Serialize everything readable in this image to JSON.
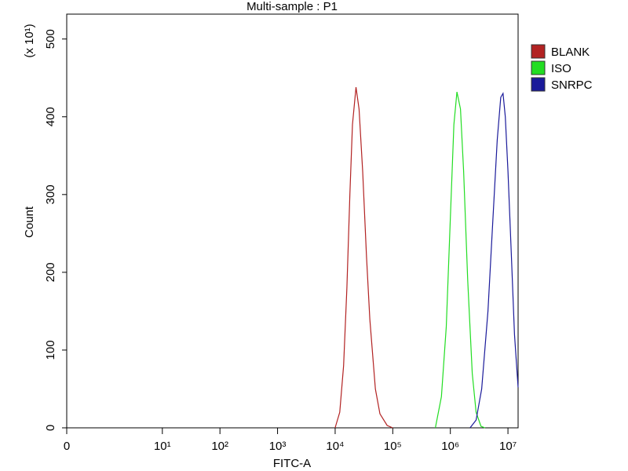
{
  "chart_data": {
    "type": "line",
    "title": "Multi-sample : P1",
    "x_label": "FITC-A",
    "y_label": "Count",
    "y_multiplier": "(x 10¹)",
    "xscale": "biexponential",
    "xlim": [
      0,
      15000000
    ],
    "xticks": [
      0,
      {
        "value": 10,
        "label": "10¹"
      },
      {
        "value": 100,
        "label": "10²"
      },
      {
        "value": 1000,
        "label": "10³"
      },
      {
        "value": 10000,
        "label": "10⁴"
      },
      {
        "value": 100000,
        "label": "10⁵"
      },
      {
        "value": 1000000,
        "label": "10⁶"
      },
      {
        "value": 10000000,
        "label": "10⁷"
      }
    ],
    "ylim": [
      0,
      532
    ],
    "yticks": [
      0,
      100,
      200,
      300,
      400,
      500
    ],
    "legend": "right",
    "series": [
      {
        "name": "BLANK",
        "color": "#b22222",
        "x": [
          10000,
          12000,
          14000,
          16000,
          18000,
          20000,
          23000,
          26000,
          30000,
          35000,
          40000,
          50000,
          60000,
          80000,
          100000
        ],
        "values": [
          0,
          20,
          80,
          180,
          300,
          390,
          438,
          410,
          330,
          220,
          140,
          50,
          18,
          3,
          0
        ]
      },
      {
        "name": "ISO",
        "color": "#22dd22",
        "x": [
          550000,
          700000,
          850000,
          1000000,
          1150000,
          1300000,
          1500000,
          1700000,
          2000000,
          2400000,
          2800000,
          3400000,
          4000000
        ],
        "values": [
          0,
          40,
          130,
          270,
          390,
          432,
          410,
          330,
          190,
          70,
          20,
          2,
          0
        ]
      },
      {
        "name": "SNRPC",
        "color": "#1a1a9a",
        "x": [
          2200000,
          2800000,
          3500000,
          4500000,
          5500000,
          6500000,
          7500000,
          8200000,
          9000000,
          10000000,
          11500000,
          13000000,
          15000000
        ],
        "values": [
          0,
          10,
          50,
          150,
          270,
          370,
          425,
          430,
          400,
          330,
          220,
          120,
          52
        ]
      }
    ]
  }
}
